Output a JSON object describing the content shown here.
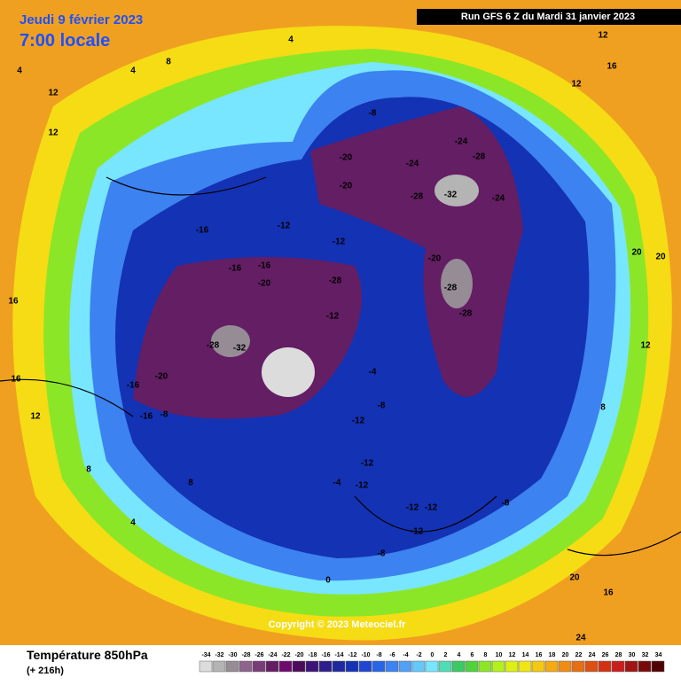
{
  "header": {
    "date": "Jeudi 9 février 2023",
    "time": "7:00 locale",
    "run": "Run GFS 6 Z du Mardi 31 janvier 2023"
  },
  "copyright": "Copyright © 2023 Meteociel.fr",
  "footer": {
    "title": "Température 850hPa",
    "lead": "(+ 216h)"
  },
  "colorbar": {
    "ticks": [
      -34,
      -32,
      -30,
      -28,
      -26,
      -24,
      -22,
      -20,
      -18,
      -16,
      -14,
      -12,
      -10,
      -8,
      -6,
      -4,
      -2,
      0,
      2,
      4,
      6,
      8,
      10,
      12,
      14,
      16,
      18,
      20,
      22,
      24,
      26,
      28,
      30,
      32,
      34
    ],
    "colors": [
      "#dcdcdc",
      "#b4b4b4",
      "#968c96",
      "#8c648c",
      "#783c78",
      "#641e64",
      "#6e0a6e",
      "#4b0a5a",
      "#3c1478",
      "#2d1e8c",
      "#1e28a0",
      "#1432b4",
      "#1e46d2",
      "#2864e6",
      "#3c82f0",
      "#50a0f5",
      "#64c8fa",
      "#78e6ff",
      "#50dcb4",
      "#3cc864",
      "#50d23c",
      "#8ce628",
      "#b4f01e",
      "#dcf014",
      "#f0e614",
      "#f5c814",
      "#f5aa14",
      "#f08c14",
      "#e66e14",
      "#dc5014",
      "#d23214",
      "#c81e1e",
      "#a01414",
      "#780a0a",
      "#500000"
    ]
  },
  "map": {
    "labels": [
      "12",
      "4",
      "8",
      "12",
      "16",
      "12",
      "4",
      "12",
      "16",
      "20",
      "-8",
      "-24",
      "-28",
      "-20",
      "-24",
      "-28",
      "-32",
      "-24",
      "-20",
      "-16",
      "-12",
      "-28",
      "-28",
      "-16",
      "-20",
      "-28",
      "-32",
      "-28",
      "-12",
      "-20",
      "-16",
      "-16",
      "-8",
      "-4",
      "-12",
      "-12",
      "-8",
      "-12",
      "-12",
      "-12",
      "-8",
      "0",
      "4",
      "8",
      "16",
      "20",
      "24",
      "20",
      "16",
      "12",
      "8",
      "-4",
      "-12",
      "-8",
      "-12",
      "-16",
      "-20",
      "12",
      "8",
      "4"
    ]
  }
}
